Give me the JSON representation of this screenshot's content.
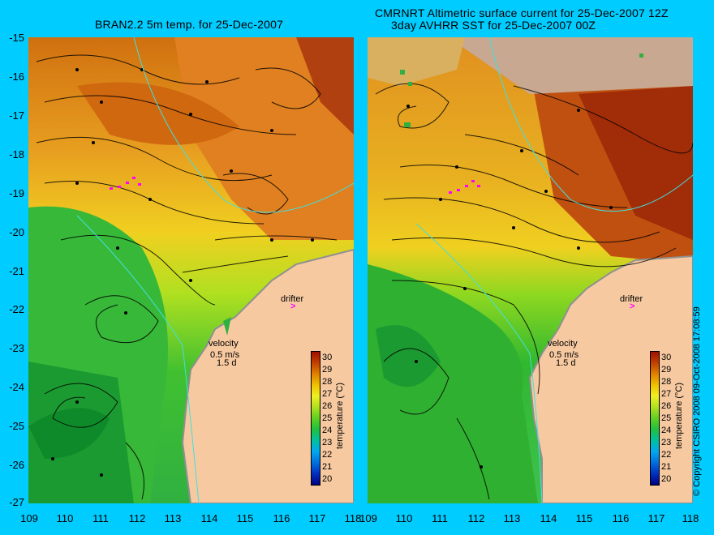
{
  "left_panel": {
    "title": "BRAN2.2 5m temp. for 25-Dec-2007"
  },
  "right_panel": {
    "title_line1": "CMRNRT Altimetric surface current for 25-Dec-2007 12Z",
    "title_line2": "3day AVHRR SST for 25-Dec-2007 00Z"
  },
  "axes": {
    "lat_labels": [
      "-15",
      "-16",
      "-17",
      "-18",
      "-19",
      "-20",
      "-21",
      "-22",
      "-23",
      "-24",
      "-25",
      "-26",
      "-27"
    ],
    "lon_labels": [
      "109",
      "110",
      "111",
      "112",
      "113",
      "114",
      "115",
      "116",
      "117",
      "118"
    ]
  },
  "annotations": {
    "drifter": "drifter",
    "velocity": "velocity",
    "speed": "0.5 m/s",
    "duration": "1.5 d"
  },
  "colorbar": {
    "label": "temperature (°C)",
    "ticks": [
      "30",
      "29",
      "28",
      "27",
      "26",
      "25",
      "24",
      "23",
      "22",
      "21",
      "20"
    ],
    "colors": [
      "#000080",
      "#0030c0",
      "#0070e0",
      "#00a8f0",
      "#00c0a0",
      "#20c040",
      "#60d020",
      "#b0e020",
      "#f0f020",
      "#f0c000",
      "#e08000",
      "#c04000",
      "#a01000"
    ]
  },
  "copyright": "© Copyright CSIRO 2008   09-Oct-2008 17:08:59"
}
